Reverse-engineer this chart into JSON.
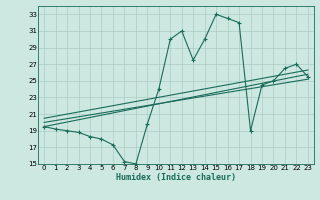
{
  "xlabel": "Humidex (Indice chaleur)",
  "bg_color": "#cce8e0",
  "grid_color": "#aaccC4",
  "line_color": "#1a6b5a",
  "xlim": [
    -0.5,
    23.5
  ],
  "ylim": [
    15,
    34
  ],
  "yticks": [
    15,
    17,
    19,
    21,
    23,
    25,
    27,
    29,
    31,
    33
  ],
  "xticks": [
    0,
    1,
    2,
    3,
    4,
    5,
    6,
    7,
    8,
    9,
    10,
    11,
    12,
    13,
    14,
    15,
    16,
    17,
    18,
    19,
    20,
    21,
    22,
    23
  ],
  "main_x": [
    0,
    1,
    2,
    3,
    4,
    5,
    6,
    7,
    8,
    9,
    10,
    11,
    12,
    13,
    14,
    15,
    16,
    17,
    18,
    19,
    20,
    21,
    22,
    23
  ],
  "main_y": [
    19.5,
    19.2,
    19.0,
    18.8,
    18.3,
    18.0,
    17.3,
    15.3,
    15.0,
    19.8,
    24.0,
    30.0,
    31.0,
    27.5,
    30.0,
    33.0,
    32.5,
    32.0,
    19.0,
    24.5,
    25.0,
    26.5,
    27.0,
    25.5
  ],
  "trend1_x": [
    0,
    23
  ],
  "trend1_y": [
    19.5,
    25.8
  ],
  "trend2_x": [
    0,
    23
  ],
  "trend2_y": [
    20.0,
    25.2
  ],
  "trend3_x": [
    0,
    23
  ],
  "trend3_y": [
    20.5,
    26.3
  ]
}
